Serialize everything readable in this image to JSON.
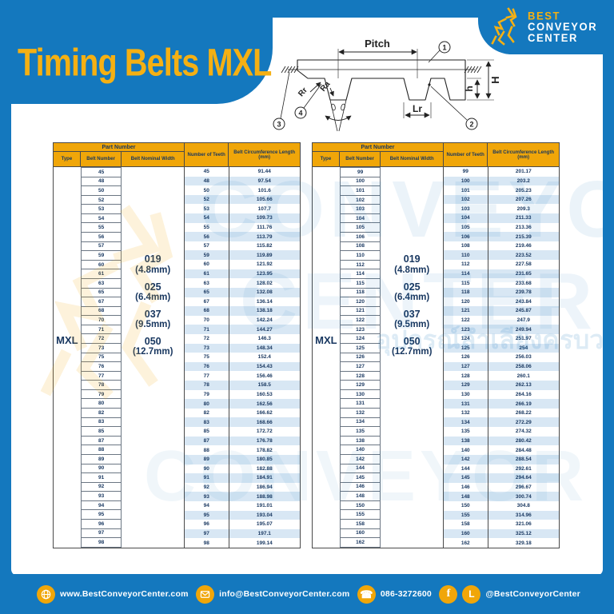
{
  "page": {
    "title": "Timing Belts MXL"
  },
  "logo": {
    "line1": "BEST",
    "line2": "CONVEYOR",
    "line3": "CENTER"
  },
  "colors": {
    "blue": "#1478BE",
    "gold_header": "#F0A609",
    "title_gold": "#F5B013",
    "navy_text": "#17365F",
    "row_stripe": "#D8E7F4"
  },
  "diagram": {
    "labels": {
      "pitch": "Pitch",
      "rr": "Rr",
      "ra": "Ra",
      "lr": "Lr",
      "big_h": "H",
      "small_h": "h"
    },
    "callouts": {
      "c1": "1",
      "c2": "2",
      "c3": "3",
      "c4": "4"
    }
  },
  "table": {
    "headers": {
      "part_number": "Part Number",
      "type": "Type",
      "belt_number": "Belt Number",
      "belt_nominal_width": "Belt Nominal Width",
      "teeth": "Number of Teeth",
      "length": "Belt Circumference Length (mm)"
    },
    "type_value": "MXL",
    "widths": [
      {
        "code": "019",
        "size": "(4.8mm)"
      },
      {
        "code": "025",
        "size": "(6.4mm)"
      },
      {
        "code": "037",
        "size": "(9.5mm)"
      },
      {
        "code": "050",
        "size": "(12.7mm)"
      }
    ]
  },
  "tables": [
    {
      "rows": [
        [
          "45",
          "91.44"
        ],
        [
          "48",
          "97.54"
        ],
        [
          "50",
          "101.6"
        ],
        [
          "52",
          "105.66"
        ],
        [
          "53",
          "107.7"
        ],
        [
          "54",
          "109.73"
        ],
        [
          "55",
          "111.76"
        ],
        [
          "56",
          "113.79"
        ],
        [
          "57",
          "115.82"
        ],
        [
          "59",
          "119.89"
        ],
        [
          "60",
          "121.92"
        ],
        [
          "61",
          "123.95"
        ],
        [
          "63",
          "128.02"
        ],
        [
          "65",
          "132.08"
        ],
        [
          "67",
          "136.14"
        ],
        [
          "68",
          "138.18"
        ],
        [
          "70",
          "142.24"
        ],
        [
          "71",
          "144.27"
        ],
        [
          "72",
          "146.3"
        ],
        [
          "73",
          "148.34"
        ],
        [
          "75",
          "152.4"
        ],
        [
          "76",
          "154.43"
        ],
        [
          "77",
          "156.46"
        ],
        [
          "78",
          "158.5"
        ],
        [
          "79",
          "160.53"
        ],
        [
          "80",
          "162.56"
        ],
        [
          "82",
          "166.62"
        ],
        [
          "83",
          "168.66"
        ],
        [
          "85",
          "172.72"
        ],
        [
          "87",
          "176.78"
        ],
        [
          "88",
          "178.82"
        ],
        [
          "89",
          "180.85"
        ],
        [
          "90",
          "182.88"
        ],
        [
          "91",
          "184.91"
        ],
        [
          "92",
          "186.94"
        ],
        [
          "93",
          "188.98"
        ],
        [
          "94",
          "191.01"
        ],
        [
          "95",
          "193.04"
        ],
        [
          "96",
          "195.07"
        ],
        [
          "97",
          "197.1"
        ],
        [
          "98",
          "199.14"
        ]
      ]
    },
    {
      "rows": [
        [
          "99",
          "201.17"
        ],
        [
          "100",
          "203.2"
        ],
        [
          "101",
          "205.23"
        ],
        [
          "102",
          "207.26"
        ],
        [
          "103",
          "209.3"
        ],
        [
          "104",
          "211.33"
        ],
        [
          "105",
          "213.36"
        ],
        [
          "106",
          "215.39"
        ],
        [
          "108",
          "219.46"
        ],
        [
          "110",
          "223.52"
        ],
        [
          "112",
          "227.58"
        ],
        [
          "114",
          "231.65"
        ],
        [
          "115",
          "233.68"
        ],
        [
          "118",
          "239.78"
        ],
        [
          "120",
          "243.84"
        ],
        [
          "121",
          "245.87"
        ],
        [
          "122",
          "247.9"
        ],
        [
          "123",
          "249.94"
        ],
        [
          "124",
          "251.97"
        ],
        [
          "125",
          "254"
        ],
        [
          "126",
          "256.03"
        ],
        [
          "127",
          "258.06"
        ],
        [
          "128",
          "260.1"
        ],
        [
          "129",
          "262.13"
        ],
        [
          "130",
          "264.16"
        ],
        [
          "131",
          "266.19"
        ],
        [
          "132",
          "268.22"
        ],
        [
          "134",
          "272.29"
        ],
        [
          "135",
          "274.32"
        ],
        [
          "138",
          "280.42"
        ],
        [
          "140",
          "284.48"
        ],
        [
          "142",
          "288.54"
        ],
        [
          "144",
          "292.61"
        ],
        [
          "145",
          "294.64"
        ],
        [
          "146",
          "296.67"
        ],
        [
          "148",
          "300.74"
        ],
        [
          "150",
          "304.8"
        ],
        [
          "155",
          "314.96"
        ],
        [
          "158",
          "321.06"
        ],
        [
          "160",
          "325.12"
        ],
        [
          "162",
          "329.18"
        ]
      ]
    }
  ],
  "watermark": {
    "big1": "CONVEYOR",
    "big2": "CENTER",
    "big3": "CONVEYOR",
    "slogan": "อุปกรณ์ลำเลียงครบวงจร"
  },
  "footer": {
    "website": "www.BestConveyorCenter.com",
    "email": "info@BestConveyorCenter.com",
    "phone": "086-3272600",
    "social": "@BestConveyorCenter"
  }
}
